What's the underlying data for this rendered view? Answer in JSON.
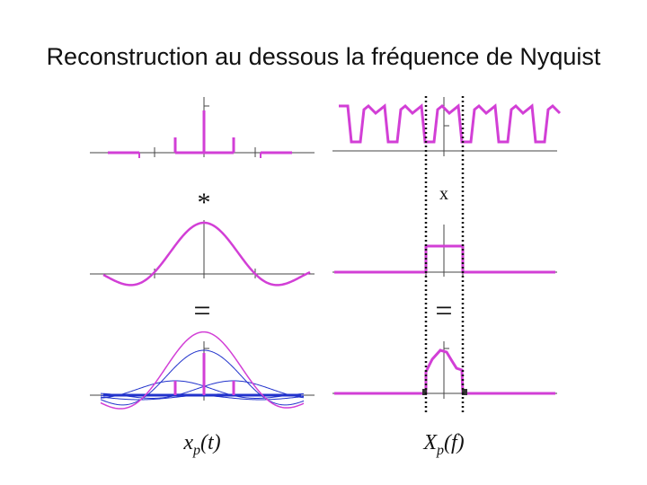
{
  "title": "Reconstruction au dessous la fréquence de Nyquist",
  "operators": {
    "convolve": "*",
    "multiply": "x",
    "equals_left": "=",
    "equals_right": "="
  },
  "labels": {
    "left_base": "x",
    "left_sub": "p",
    "left_arg": "(t)",
    "right_base": "X",
    "right_sub": "p",
    "right_arg": "(f)"
  },
  "colors": {
    "signal": "#d23fd6",
    "axis": "#333333",
    "component": "#2233cc",
    "guide": "#111111"
  }
}
